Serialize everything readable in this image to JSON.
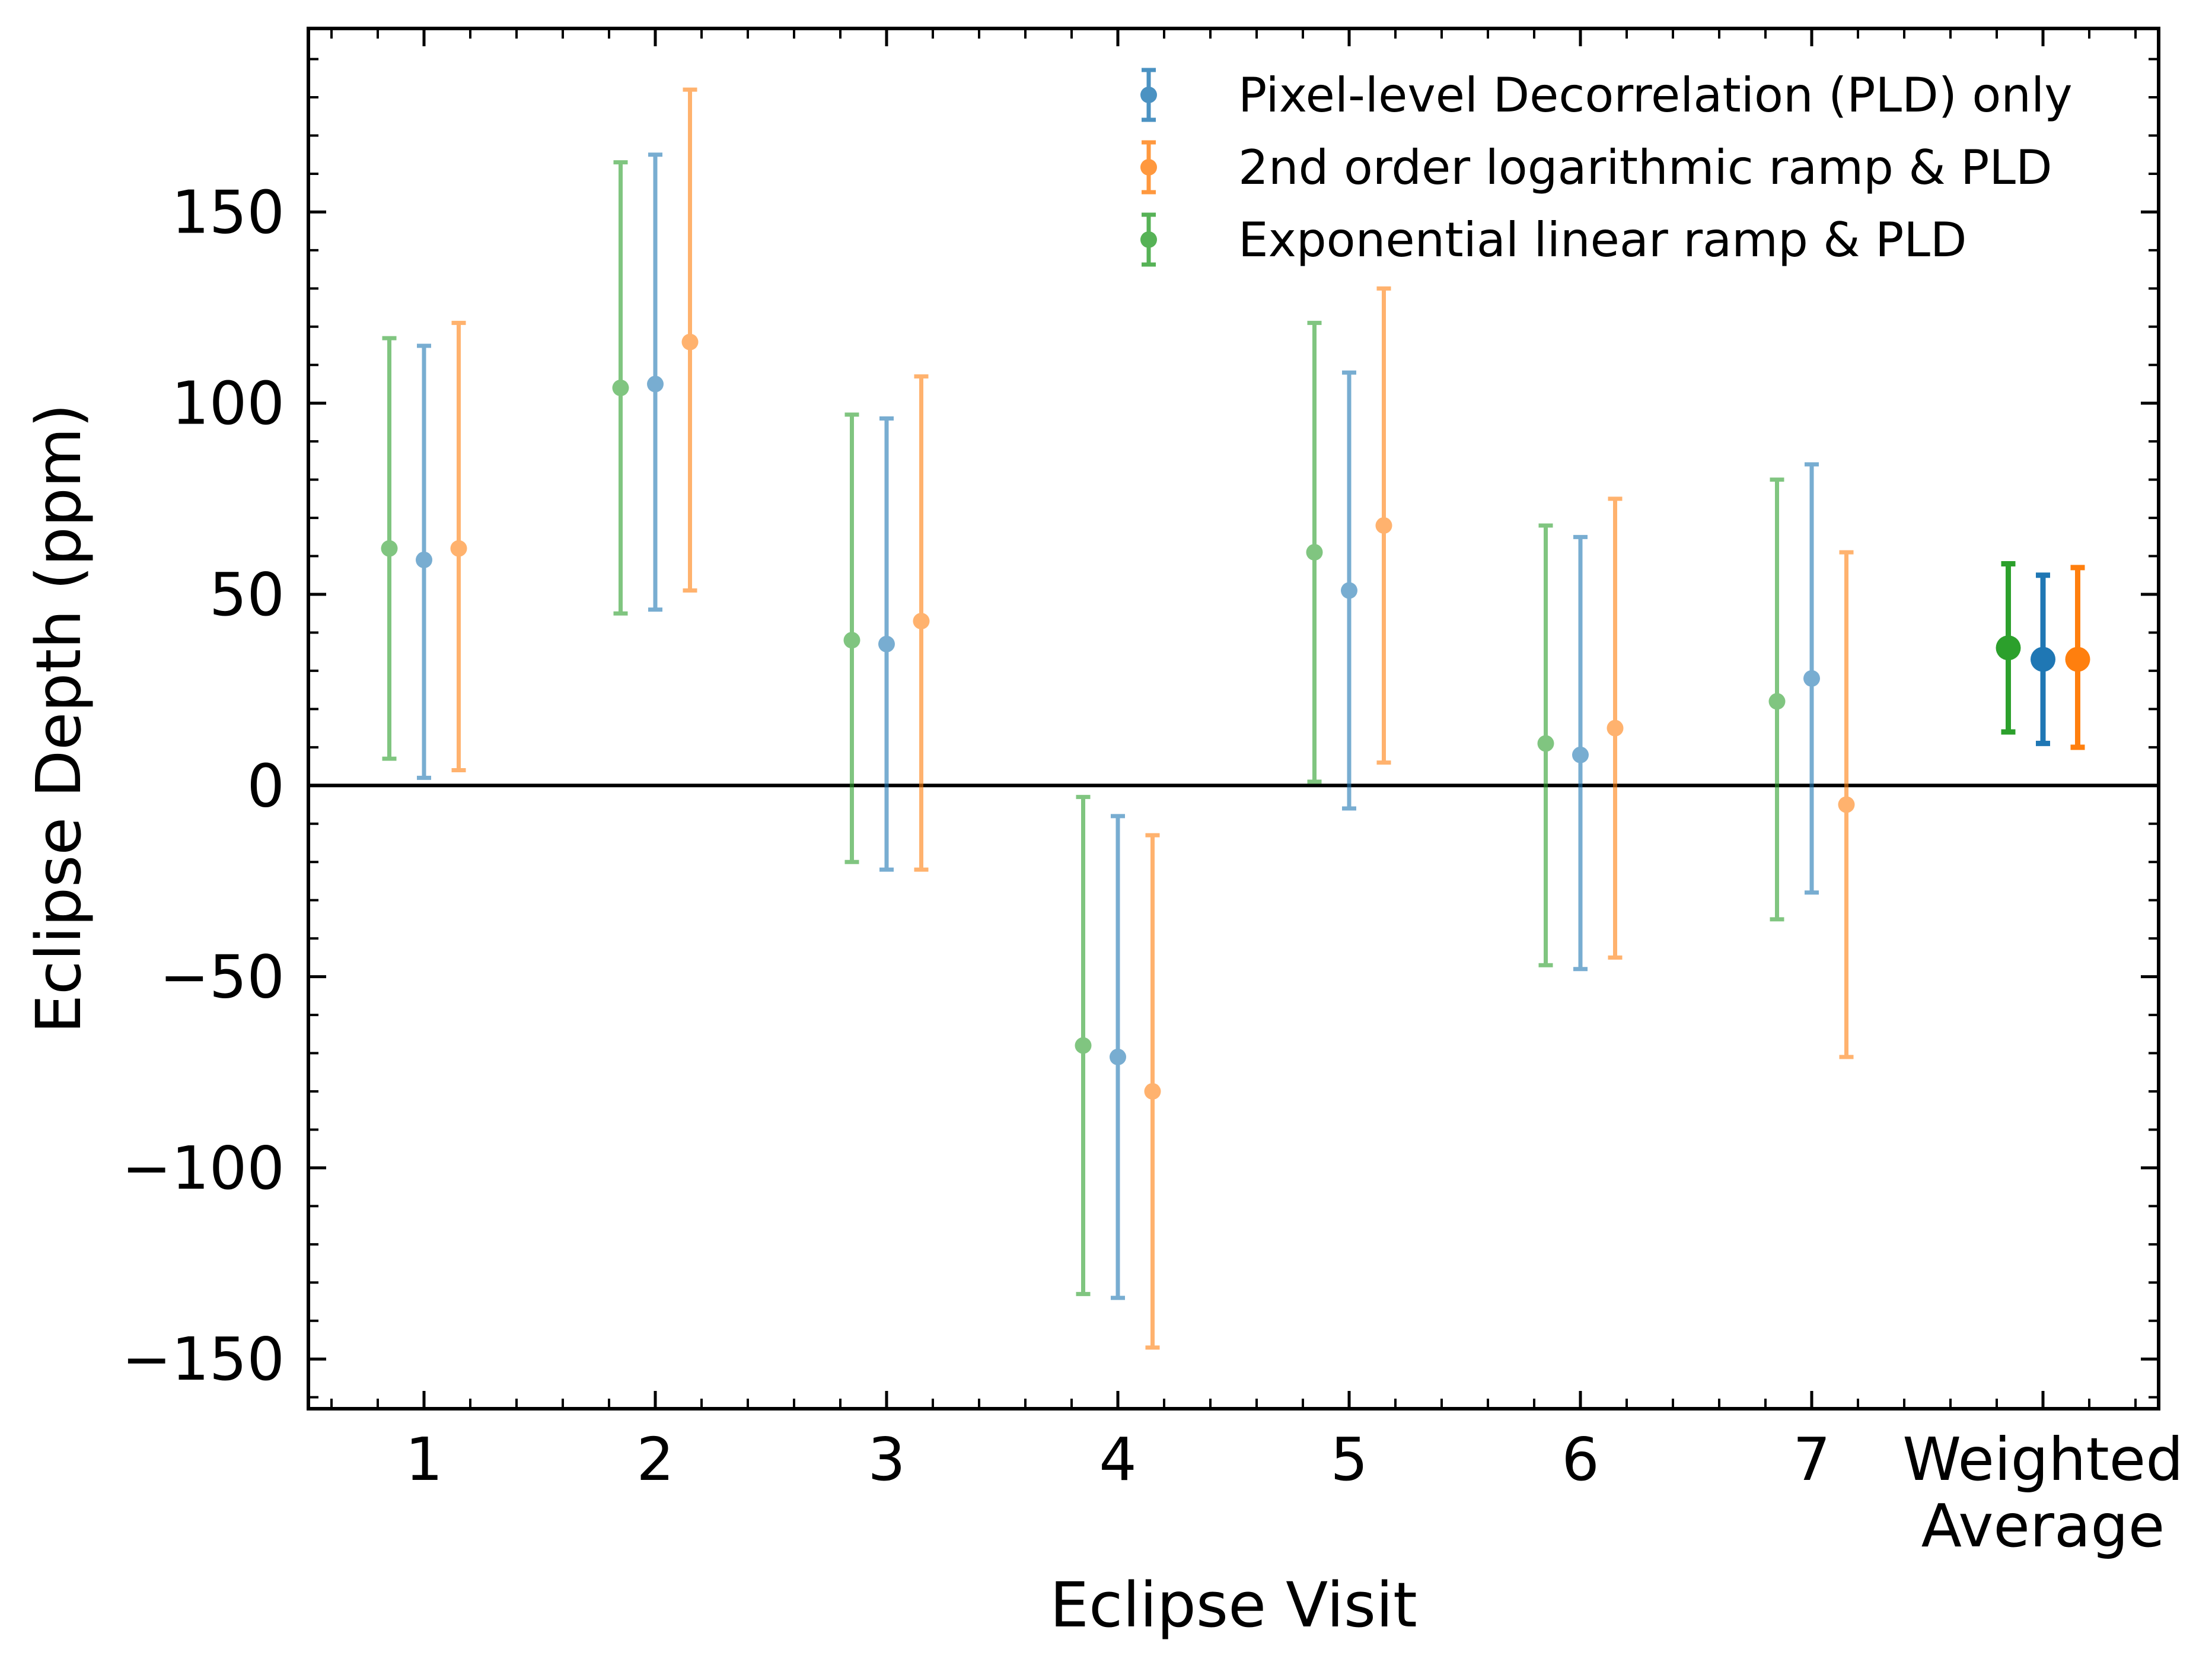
{
  "chart_data": {
    "type": "scatter",
    "subtype": "errorbar",
    "title": "",
    "xlabel": "Eclipse Visit",
    "ylabel": "Eclipse Depth (ppm)",
    "categories": [
      "1",
      "2",
      "3",
      "4",
      "5",
      "6",
      "7",
      "Weighted\nAverage"
    ],
    "xlim": [
      0.5,
      8.5
    ],
    "ylim": [
      -163,
      198
    ],
    "y_ticks": [
      -150,
      -100,
      -50,
      0,
      50,
      100,
      150
    ],
    "x_tick_labels": [
      "1",
      "2",
      "3",
      "4",
      "5",
      "6",
      "7",
      "Weighted",
      "Average"
    ],
    "zero_line": true,
    "grid": false,
    "legend_position": "upper-right",
    "series": [
      {
        "name": "Pixel-level Decorrelation (PLD) only",
        "color": "#1f77b4",
        "x_offset": 0,
        "y": [
          59,
          105,
          37,
          -71,
          51,
          8,
          28,
          33
        ],
        "lower": [
          2,
          46,
          -22,
          -134,
          -6,
          -48,
          -28,
          11
        ],
        "upper": [
          115,
          165,
          96,
          -8,
          108,
          65,
          84,
          55
        ]
      },
      {
        "name": "2nd order logarithmic ramp & PLD",
        "color": "#ff7f0e",
        "x_offset": 0.15,
        "y": [
          62,
          116,
          43,
          -80,
          68,
          15,
          -5,
          33
        ],
        "lower": [
          4,
          51,
          -22,
          -147,
          6,
          -45,
          -71,
          10
        ],
        "upper": [
          121,
          182,
          107,
          -13,
          130,
          75,
          61,
          57
        ]
      },
      {
        "name": "Exponential linear ramp & PLD",
        "color": "#2ca02c",
        "x_offset": -0.15,
        "y": [
          62,
          104,
          38,
          -68,
          61,
          11,
          22,
          36
        ],
        "lower": [
          7,
          45,
          -20,
          -133,
          1,
          -47,
          -35,
          14
        ],
        "upper": [
          117,
          163,
          97,
          -3,
          121,
          68,
          80,
          58
        ]
      }
    ]
  }
}
